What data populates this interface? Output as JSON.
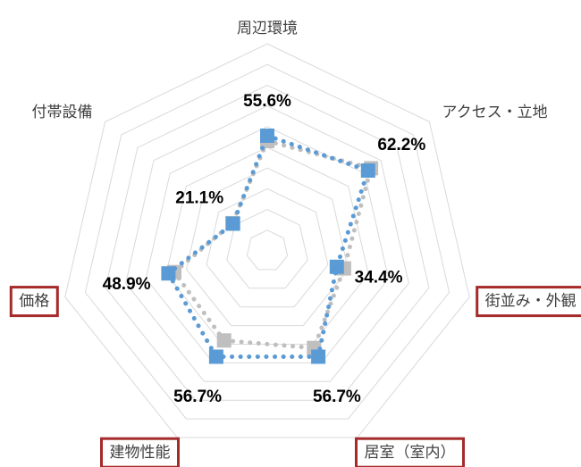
{
  "chart_data": {
    "type": "radar",
    "title": "",
    "categories": [
      "周辺環境",
      "アクセス・立地",
      "街並み・外観",
      "居室（室内）",
      "建物性能",
      "価格",
      "付帯設備"
    ],
    "highlighted_categories": [
      "街並み・外観",
      "居室（室内）",
      "建物性能",
      "価格"
    ],
    "rmax": 100,
    "grid_levels": [
      0,
      10,
      20,
      30,
      40,
      50,
      60,
      70,
      80,
      90,
      100
    ],
    "grid": true,
    "legend": "none",
    "series": [
      {
        "values": [
          55.6,
          62.2,
          34.4,
          56.7,
          56.7,
          48.9,
          21.1
        ],
        "value_labels": [
          "55.6%",
          "62.2%",
          "34.4%",
          "56.7%",
          "56.7%",
          "48.9%",
          "21.1%"
        ],
        "color": "#5b9bd5",
        "marker": "square",
        "line": "dotted"
      },
      {
        "values": [
          53.0,
          64.0,
          38.0,
          52.0,
          48.0,
          46.0,
          21.5
        ],
        "color": "#bfbfbf",
        "marker": "square",
        "line": "dotted"
      }
    ],
    "colors": {
      "grid": "#d9d9d9",
      "highlight_border": "#a52a2a"
    }
  }
}
